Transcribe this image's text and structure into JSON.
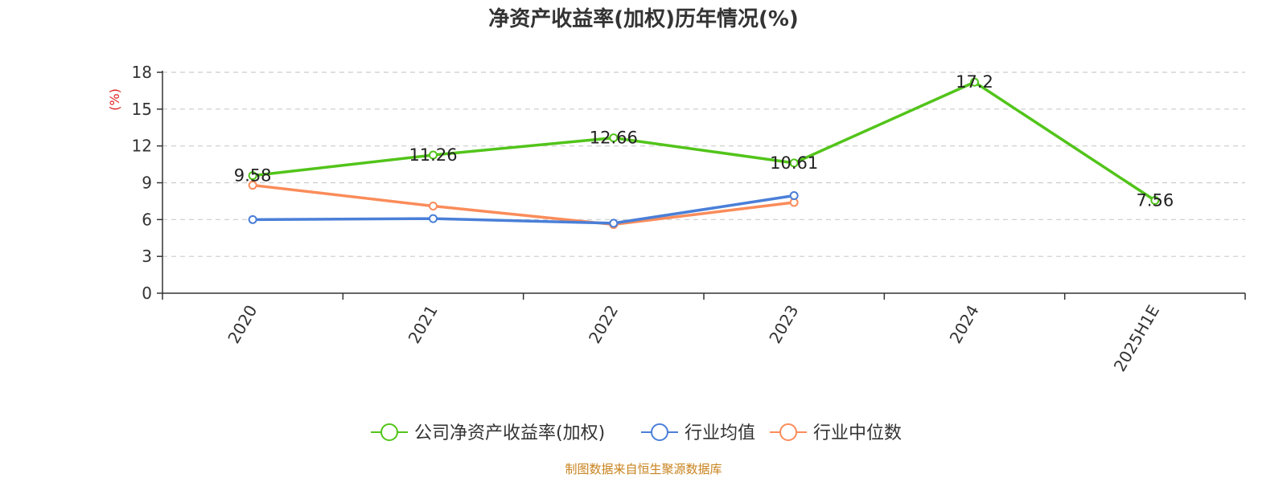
{
  "chart_data": {
    "type": "line",
    "title": "净资产收益率(加权)历年情况(%)",
    "unit_label": "(%)",
    "categories": [
      "2020",
      "2021",
      "2022",
      "2023",
      "2024",
      "2025H1E"
    ],
    "yticks": [
      0,
      3,
      6,
      9,
      12,
      15,
      18
    ],
    "ylim": [
      0,
      18
    ],
    "grid": true,
    "legend_position": "bottom-center",
    "series": [
      {
        "name": "公司净资产收益率(加权)",
        "color": "#52c41a",
        "values": [
          9.58,
          11.26,
          12.66,
          10.61,
          17.2,
          7.56
        ],
        "labels": [
          "9.58",
          "11.26",
          "12.66",
          "10.61",
          "17.2",
          "7.56"
        ]
      },
      {
        "name": "行业均值",
        "color": "#4a7fd8",
        "values": [
          6.0,
          6.08,
          5.7,
          7.95,
          null,
          null
        ]
      },
      {
        "name": "行业中位数",
        "color": "#fa8c5a",
        "values": [
          8.8,
          7.1,
          5.6,
          7.4,
          null,
          null
        ]
      }
    ],
    "source": "制图数据来自恒生聚源数据库",
    "unit_color": "#e02020",
    "source_color": "#c8821c"
  }
}
